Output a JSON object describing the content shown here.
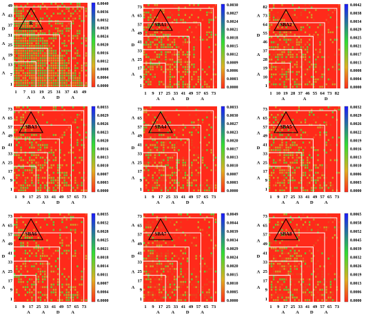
{
  "chart_data": [
    {
      "type": "heatmap",
      "title": "R",
      "xticks": [
        "1",
        "7",
        "13",
        "19",
        "25",
        "31",
        "37",
        "43",
        "49"
      ],
      "yticks": [
        "1",
        "7",
        "13",
        "19",
        "25",
        "31",
        "37",
        "43",
        "49"
      ],
      "xgroups": [
        "A",
        "A",
        "D",
        "A"
      ],
      "ygroups": [
        "A",
        "A",
        "A",
        "D",
        "A"
      ],
      "colorbar": [
        "0.0040",
        "0.0036",
        "0.0032",
        "0.0028",
        "0.0024",
        "0.0020",
        "0.0016",
        "0.0012",
        "0.0008",
        "0.0004",
        "0.0000"
      ],
      "greenness": 0.55
    },
    {
      "type": "heatmap",
      "title": "SBA1",
      "xticks": [
        "1",
        "9",
        "17",
        "25",
        "33",
        "41",
        "49",
        "57",
        "65",
        "73"
      ],
      "yticks": [
        "1",
        "9",
        "17",
        "25",
        "33",
        "41",
        "49",
        "57",
        "65",
        "73"
      ],
      "xgroups": [
        "A",
        "A",
        "D",
        "A"
      ],
      "ygroups": [
        "A",
        "A",
        "D",
        "A",
        "A"
      ],
      "colorbar": [
        "0.0030",
        "0.0027",
        "0.0024",
        "0.0021",
        "0.0018",
        "0.0015",
        "0.0012",
        "0.0009",
        "0.0006",
        "0.0003",
        "0.0000"
      ],
      "greenness": 0.2
    },
    {
      "type": "heatmap",
      "title": "SBA2",
      "xticks": [
        "1",
        "10",
        "19",
        "28",
        "37",
        "46",
        "55",
        "64",
        "73",
        "82"
      ],
      "yticks": [
        "1",
        "10",
        "19",
        "28",
        "37",
        "46",
        "55",
        "64",
        "73",
        "82"
      ],
      "xgroups": [
        "A",
        "A",
        "D"
      ],
      "ygroups": [
        "A",
        "A",
        "D",
        "A"
      ],
      "colorbar": [
        "0.0042",
        "0.0038",
        "0.0034",
        "0.0029",
        "0.0025",
        "0.0021",
        "0.0017",
        "0.0013",
        "0.0008",
        "0.0004",
        "0.0000"
      ],
      "greenness": 0.15
    },
    {
      "type": "heatmap",
      "title": "SBA3",
      "xticks": [
        "1",
        "9",
        "17",
        "25",
        "33",
        "41",
        "49",
        "57",
        "65",
        "73"
      ],
      "yticks": [
        "1",
        "9",
        "17",
        "25",
        "33",
        "41",
        "49",
        "57",
        "65",
        "73"
      ],
      "xgroups": [
        "A",
        "A",
        "D",
        "A"
      ],
      "ygroups": [
        "A",
        "A",
        "D",
        "A",
        "A"
      ],
      "colorbar": [
        "0.0033",
        "0.0029",
        "0.0026",
        "0.0023",
        "0.0020",
        "0.0016",
        "0.0013",
        "0.0010",
        "0.0007",
        "0.0003",
        "0.0000"
      ],
      "greenness": 0.2
    },
    {
      "type": "heatmap",
      "title": "SBA4",
      "xticks": [
        "1",
        "9",
        "17",
        "25",
        "33",
        "41",
        "49",
        "57",
        "65",
        "73"
      ],
      "yticks": [
        "1",
        "9",
        "17",
        "25",
        "33",
        "41",
        "49",
        "57",
        "65",
        "73"
      ],
      "xgroups": [
        "A",
        "A",
        "D",
        "A"
      ],
      "ygroups": [
        "A",
        "A",
        "D",
        "A",
        "A"
      ],
      "colorbar": [
        "0.0033",
        "0.0030",
        "0.0027",
        "0.0023",
        "0.0020",
        "0.0017",
        "0.0013",
        "0.0010",
        "0.0007",
        "0.0003",
        "0.0000"
      ],
      "greenness": 0.15
    },
    {
      "type": "heatmap",
      "title": "SBA5",
      "xticks": [
        "1",
        "9",
        "17",
        "25",
        "33",
        "41",
        "49",
        "57",
        "65",
        "73"
      ],
      "yticks": [
        "1",
        "9",
        "17",
        "25",
        "33",
        "41",
        "49",
        "57",
        "65",
        "73"
      ],
      "xgroups": [
        "A",
        "A",
        "D",
        "A"
      ],
      "ygroups": [
        "A",
        "A",
        "D",
        "A",
        "A"
      ],
      "colorbar": [
        "0.0032",
        "0.0029",
        "0.0026",
        "0.0022",
        "0.0019",
        "0.0016",
        "0.0013",
        "0.0010",
        "0.0006",
        "0.0003",
        "0.0000"
      ],
      "greenness": 0.2
    },
    {
      "type": "heatmap",
      "title": "SBA6",
      "xticks": [
        "1",
        "9",
        "17",
        "25",
        "33",
        "41",
        "49",
        "57",
        "65",
        "73"
      ],
      "yticks": [
        "1",
        "9",
        "17",
        "25",
        "33",
        "41",
        "49",
        "57",
        "65",
        "73"
      ],
      "xgroups": [
        "A",
        "A",
        "D",
        "A"
      ],
      "ygroups": [
        "A",
        "A",
        "D",
        "A",
        "A"
      ],
      "colorbar": [
        "0.0035",
        "0.0032",
        "0.0028",
        "0.0025",
        "0.0021",
        "0.0018",
        "0.0014",
        "0.0011",
        "0.0007",
        "0.0004",
        "0.0000"
      ],
      "greenness": 0.18
    },
    {
      "type": "heatmap",
      "title": "SBA7",
      "xticks": [
        "1",
        "9",
        "17",
        "25",
        "33",
        "41",
        "49",
        "57",
        "65",
        "73"
      ],
      "yticks": [
        "1",
        "9",
        "17",
        "25",
        "33",
        "41",
        "49",
        "57",
        "65",
        "73"
      ],
      "xgroups": [
        "A",
        "A",
        "D",
        "A"
      ],
      "ygroups": [
        "A",
        "A",
        "D",
        "A",
        "A"
      ],
      "colorbar": [
        "0.0049",
        "0.0044",
        "0.0039",
        "0.0034",
        "0.0029",
        "0.0024",
        "0.0020",
        "0.0015",
        "0.0010",
        "0.0005",
        "0.0000"
      ],
      "greenness": 0.08
    },
    {
      "type": "heatmap",
      "title": "SBA8",
      "xticks": [
        "1",
        "9",
        "17",
        "25",
        "33",
        "41",
        "49",
        "57",
        "65",
        "73"
      ],
      "yticks": [
        "1",
        "9",
        "17",
        "25",
        "33",
        "41",
        "49",
        "57",
        "65",
        "73"
      ],
      "xgroups": [
        "A",
        "A",
        "D",
        "A"
      ],
      "ygroups": [
        "A",
        "A",
        "D",
        "A",
        "A"
      ],
      "colorbar": [
        "0.0065",
        "0.0058",
        "0.0052",
        "0.0045",
        "0.0039",
        "0.0032",
        "0.0026",
        "0.0019",
        "0.0013",
        "0.0006",
        "0.0000"
      ],
      "greenness": 0.1
    }
  ]
}
